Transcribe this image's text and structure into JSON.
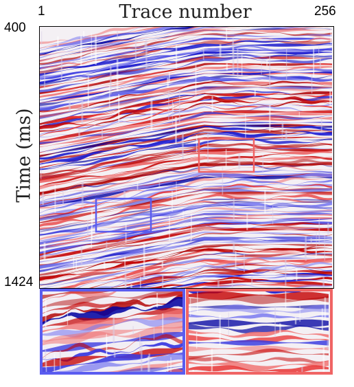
{
  "figure": {
    "title": "Trace number",
    "x_start_label": "1",
    "x_end_label": "256",
    "y_top_label": "400",
    "y_bottom_label": "1424",
    "y_axis_label": "Time (ms)"
  },
  "seismic_section": {
    "colormap": [
      "#0000cc",
      "#ffffff",
      "#dd0000"
    ],
    "highlight_boxes": [
      {
        "name": "red-box",
        "color": "#f06464"
      },
      {
        "name": "blue-box",
        "color": "#5a5cf0"
      }
    ]
  },
  "zoom_panels": [
    {
      "name": "blue-zoom-panel",
      "border_color": "#5a5cf0"
    },
    {
      "name": "red-zoom-panel",
      "border_color": "#f06464"
    }
  ]
}
